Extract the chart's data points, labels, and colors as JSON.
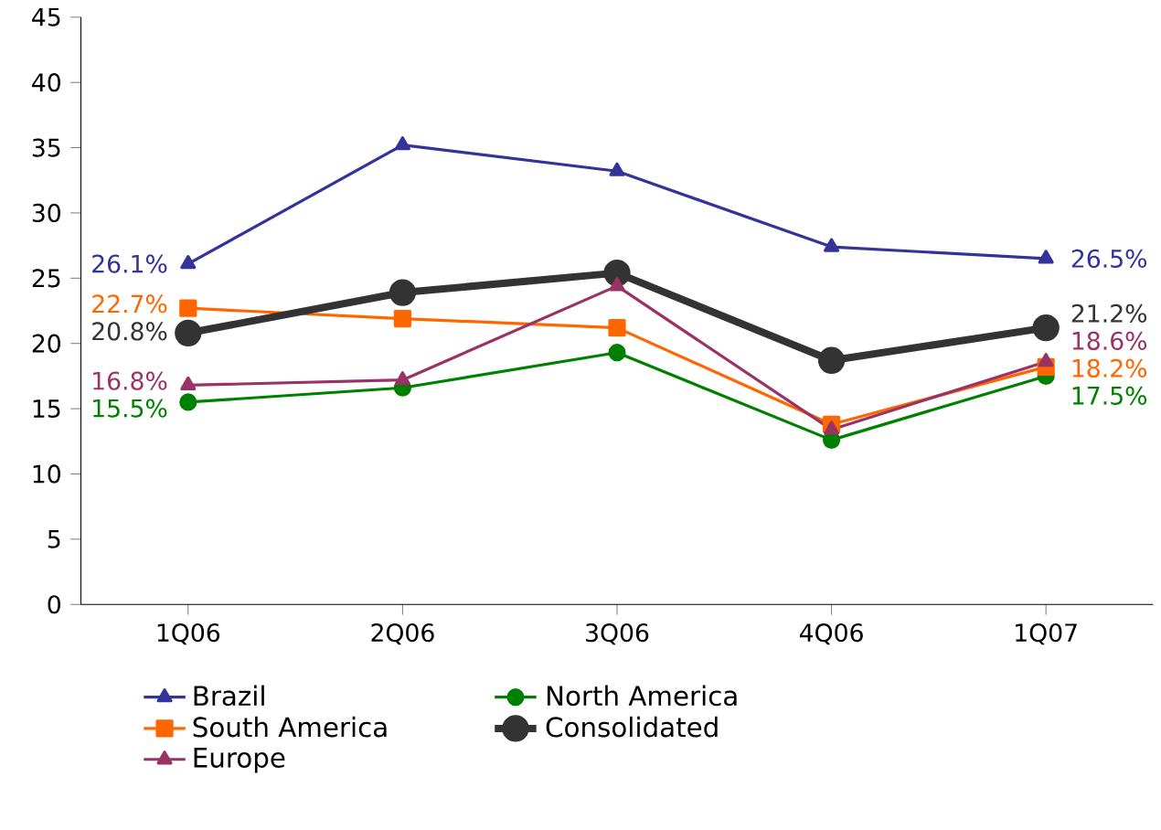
{
  "chart_data": {
    "type": "line",
    "categories": [
      "1Q06",
      "2Q06",
      "3Q06",
      "4Q06",
      "1Q07"
    ],
    "series": [
      {
        "name": "Brazil",
        "color": "#333399",
        "marker": "triangle",
        "values": [
          26.1,
          35.2,
          33.2,
          27.4,
          26.5
        ],
        "value_labels": [
          "26.1%",
          null,
          null,
          null,
          "26.5%"
        ]
      },
      {
        "name": "North America",
        "color": "#008000",
        "marker": "circle",
        "values": [
          15.5,
          16.6,
          19.3,
          12.6,
          17.5
        ],
        "value_labels": [
          "15.5%",
          null,
          null,
          null,
          "17.5%"
        ]
      },
      {
        "name": "South America",
        "color": "#ff6600",
        "marker": "square",
        "values": [
          22.7,
          21.9,
          21.2,
          13.8,
          18.2
        ],
        "value_labels": [
          "22.7%",
          null,
          null,
          null,
          "18.2%"
        ]
      },
      {
        "name": "Consolidated",
        "color": "#333333",
        "marker": "circle",
        "values": [
          20.8,
          23.9,
          25.4,
          18.7,
          21.2
        ],
        "value_labels": [
          "20.8%",
          null,
          null,
          null,
          "21.2%"
        ]
      },
      {
        "name": "Europe",
        "color": "#993366",
        "marker": "triangle",
        "values": [
          16.8,
          17.2,
          24.4,
          13.4,
          18.6
        ],
        "value_labels": [
          "16.8%",
          null,
          null,
          null,
          "18.6%"
        ]
      }
    ],
    "ylim": [
      0,
      45
    ],
    "yticks": [
      0,
      5,
      10,
      15,
      20,
      25,
      30,
      35,
      40,
      45
    ],
    "grid": false,
    "legend": "bottom",
    "line_style": "solid"
  }
}
